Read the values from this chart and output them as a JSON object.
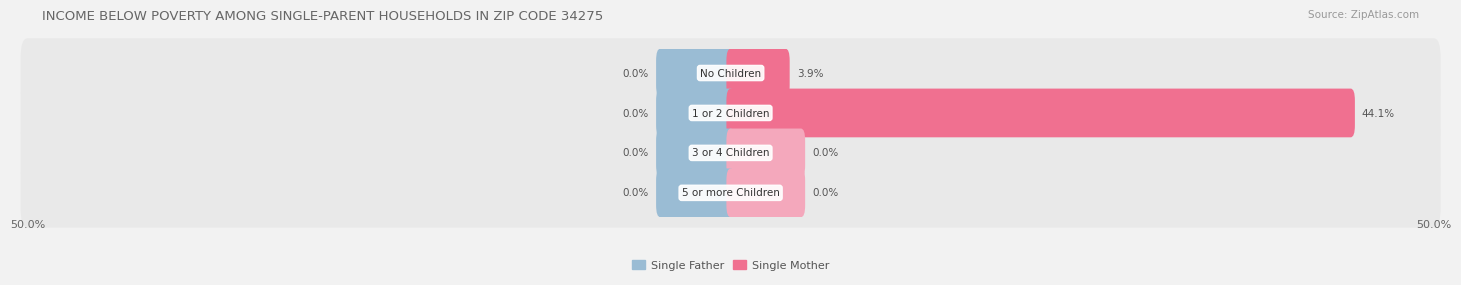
{
  "title": "INCOME BELOW POVERTY AMONG SINGLE-PARENT HOUSEHOLDS IN ZIP CODE 34275",
  "source": "Source: ZipAtlas.com",
  "categories": [
    "No Children",
    "1 or 2 Children",
    "3 or 4 Children",
    "5 or more Children"
  ],
  "single_father": [
    0.0,
    0.0,
    0.0,
    0.0
  ],
  "single_mother": [
    3.9,
    44.1,
    0.0,
    0.0
  ],
  "father_stub": 5.0,
  "mother_stub": 5.0,
  "axis_min": -50.0,
  "axis_max": 50.0,
  "father_color": "#9abcd4",
  "mother_color": "#f07090",
  "mother_stub_color": "#f4a8bc",
  "bg_color": "#f2f2f2",
  "bar_bg_color": "#e8e8e8",
  "row_bg_color": "#efefef",
  "title_fontsize": 9.5,
  "source_fontsize": 7.5,
  "label_fontsize": 7.5,
  "tick_fontsize": 8,
  "legend_fontsize": 8
}
